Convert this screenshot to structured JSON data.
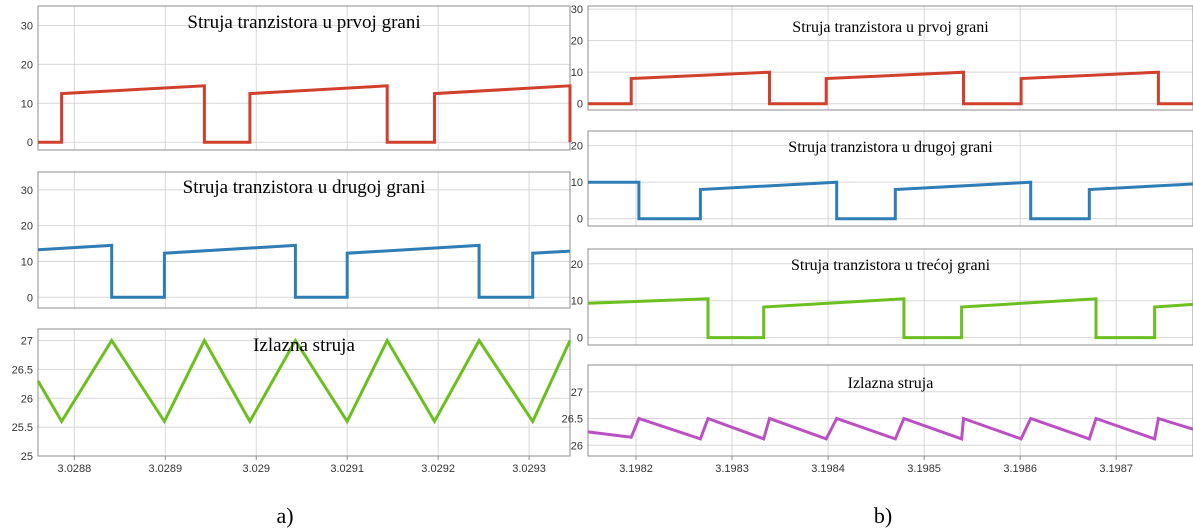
{
  "chart_data": [
    {
      "type": "line",
      "panel": "a-1",
      "title": "Struja tranzistora u prvoj grani",
      "ylim": [
        -2,
        35
      ],
      "yticks": [
        0,
        10,
        20,
        30
      ],
      "xlim": [
        3.02876,
        3.029345
      ],
      "grid": true,
      "color": "#d0402c",
      "series": [
        {
          "x": [
            3.02876,
            3.028786,
            3.028786,
            3.028943,
            3.028943,
            3.028993,
            3.028993,
            3.029144,
            3.029144,
            3.029196,
            3.029196,
            3.029345,
            3.029345
          ],
          "y": [
            0,
            0,
            12.5,
            14.5,
            0,
            0,
            12.5,
            14.5,
            0,
            0,
            12.5,
            14.5,
            0
          ]
        }
      ]
    },
    {
      "type": "line",
      "panel": "a-2",
      "title": "Struja tranzistora u drugoj grani",
      "ylim": [
        -3,
        35
      ],
      "yticks": [
        0,
        10,
        20,
        30
      ],
      "xlim": [
        3.02876,
        3.029345
      ],
      "grid": true,
      "color": "#2f7db5",
      "series": [
        {
          "x": [
            3.02876,
            3.028841,
            3.028841,
            3.028899,
            3.028899,
            3.029043,
            3.029043,
            3.0291,
            3.0291,
            3.029245,
            3.029245,
            3.029304,
            3.029304,
            3.029345
          ],
          "y": [
            13.3,
            14.5,
            0,
            0,
            12.3,
            14.5,
            0,
            0,
            12.3,
            14.5,
            0,
            0,
            12.3,
            12.9
          ]
        }
      ]
    },
    {
      "type": "line",
      "panel": "a-3",
      "title": "Izlazna struja",
      "ylim": [
        25,
        27.2
      ],
      "yticks": [
        25,
        25.5,
        26,
        26.5,
        27
      ],
      "yticklabels": [
        "25",
        "25.5",
        "26",
        "26.5",
        "27"
      ],
      "xlim": [
        3.02876,
        3.029345
      ],
      "xticks": [
        3.0288,
        3.0289,
        3.029,
        3.0291,
        3.0292,
        3.0293
      ],
      "xticklabels": [
        "3.0288",
        "3.0289",
        "3.029",
        "3.0291",
        "3.0292",
        "3.0293"
      ],
      "grid": true,
      "color": "#6bbf1e",
      "series": [
        {
          "x": [
            3.02876,
            3.028786,
            3.028841,
            3.028899,
            3.028943,
            3.028993,
            3.029043,
            3.0291,
            3.029144,
            3.029196,
            3.029245,
            3.029304,
            3.029345
          ],
          "y": [
            26.3,
            25.6,
            27,
            25.6,
            27,
            25.6,
            27,
            25.6,
            27,
            25.6,
            27,
            25.6,
            27
          ]
        }
      ]
    },
    {
      "type": "line",
      "panel": "b-1",
      "title": "Struja tranzistora u prvoj grani",
      "ylim": [
        -2,
        31
      ],
      "yticks": [
        0,
        10,
        20,
        30
      ],
      "xlim": [
        3.19815,
        3.19878
      ],
      "grid": true,
      "color": "#d0402c",
      "series": [
        {
          "x": [
            3.19815,
            3.198195,
            3.198195,
            3.198339,
            3.198339,
            3.198398,
            3.198398,
            3.198541,
            3.198541,
            3.198601,
            3.198601,
            3.198744,
            3.198744,
            3.19878
          ],
          "y": [
            0,
            0,
            8,
            10,
            0,
            0,
            8,
            10,
            0,
            0,
            8,
            10,
            0,
            0
          ]
        }
      ]
    },
    {
      "type": "line",
      "panel": "b-2",
      "title": "Struja tranzistora u drugoj grani",
      "ylim": [
        -2,
        24
      ],
      "yticks": [
        0,
        10,
        20
      ],
      "xlim": [
        3.19815,
        3.19878
      ],
      "grid": true,
      "color": "#2f7db5",
      "series": [
        {
          "x": [
            3.19815,
            3.198203,
            3.198203,
            3.198267,
            3.198267,
            3.198409,
            3.198409,
            3.19847,
            3.19847,
            3.198611,
            3.198611,
            3.198672,
            3.198672,
            3.19878
          ],
          "y": [
            10,
            10,
            0,
            0,
            8,
            10,
            0,
            0,
            8,
            10,
            0,
            0,
            8,
            9.5
          ]
        }
      ]
    },
    {
      "type": "line",
      "panel": "b-3",
      "title": "Struja tranzistora u trećoj grani",
      "ylim": [
        -2,
        24
      ],
      "yticks": [
        0,
        10,
        20
      ],
      "xlim": [
        3.19815,
        3.19878
      ],
      "grid": true,
      "color": "#6bbf1e",
      "series": [
        {
          "x": [
            3.19815,
            3.198275,
            3.198275,
            3.198333,
            3.198333,
            3.198479,
            3.198479,
            3.198539,
            3.198539,
            3.198679,
            3.198679,
            3.19874,
            3.19874,
            3.19878
          ],
          "y": [
            9.3,
            10.5,
            0,
            0,
            8.3,
            10.5,
            0,
            0,
            8.3,
            10.5,
            0,
            0,
            8.3,
            9
          ]
        }
      ]
    },
    {
      "type": "line",
      "panel": "b-4",
      "title": "Izlazna struja",
      "ylim": [
        25.8,
        27.5
      ],
      "yticks": [
        26,
        26.5,
        27
      ],
      "yticklabels": [
        "26",
        "26.5",
        "27"
      ],
      "xlim": [
        3.19815,
        3.19878
      ],
      "xticks": [
        3.1982,
        3.1983,
        3.1984,
        3.1985,
        3.1986,
        3.1987
      ],
      "xticklabels": [
        "3.1982",
        "3.1983",
        "3.1984",
        "3.1985",
        "3.1986",
        "3.1987"
      ],
      "grid": true,
      "color": "#bb4fc4",
      "series": [
        {
          "x": [
            3.19815,
            3.198195,
            3.198203,
            3.198267,
            3.198275,
            3.198333,
            3.198339,
            3.198398,
            3.198409,
            3.19847,
            3.198479,
            3.198539,
            3.198541,
            3.198601,
            3.198611,
            3.198672,
            3.198679,
            3.19874,
            3.198744,
            3.19878
          ],
          "y": [
            26.25,
            26.15,
            26.5,
            26.12,
            26.5,
            26.12,
            26.5,
            26.12,
            26.5,
            26.12,
            26.5,
            26.12,
            26.5,
            26.12,
            26.5,
            26.12,
            26.5,
            26.12,
            26.5,
            26.3
          ]
        }
      ]
    }
  ],
  "labels": {
    "a": "a)",
    "b": "b)"
  }
}
